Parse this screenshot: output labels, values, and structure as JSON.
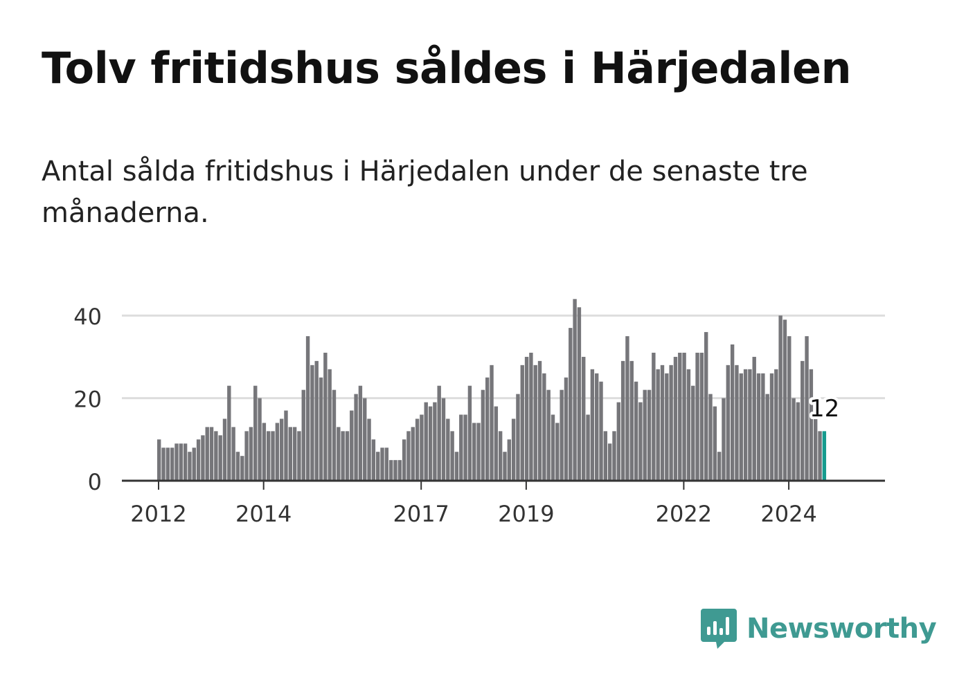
{
  "title": "Tolv fritidshus såldes i Härjedalen",
  "subtitle": "Antal sålda fritidshus i Härjedalen under de senaste tre månaderna.",
  "brand": {
    "name": "Newsworthy",
    "color": "#3f9a92",
    "icon": "newsworthy-logo-icon"
  },
  "colors": {
    "bar": "#76767a",
    "highlight": "#159b8e",
    "grid": "#dddddd",
    "axis": "#333333",
    "text": "#333333"
  },
  "chart_data": {
    "type": "bar",
    "x_start": "2012-01",
    "frequency": "monthly",
    "values": [
      10,
      8,
      8,
      8,
      9,
      9,
      9,
      7,
      8,
      10,
      11,
      13,
      13,
      12,
      11,
      15,
      23,
      13,
      7,
      6,
      12,
      13,
      23,
      20,
      14,
      12,
      12,
      14,
      15,
      17,
      13,
      13,
      12,
      22,
      35,
      28,
      29,
      25,
      31,
      27,
      22,
      13,
      12,
      12,
      17,
      21,
      23,
      20,
      15,
      10,
      7,
      8,
      8,
      5,
      5,
      5,
      10,
      12,
      13,
      15,
      16,
      19,
      18,
      19,
      23,
      20,
      15,
      12,
      7,
      16,
      16,
      23,
      14,
      14,
      22,
      25,
      28,
      18,
      12,
      7,
      10,
      15,
      21,
      28,
      30,
      31,
      28,
      29,
      26,
      22,
      16,
      14,
      22,
      25,
      37,
      44,
      42,
      30,
      16,
      27,
      26,
      24,
      12,
      9,
      12,
      19,
      29,
      35,
      29,
      24,
      19,
      22,
      22,
      31,
      27,
      28,
      26,
      28,
      30,
      31,
      31,
      27,
      23,
      31,
      31,
      36,
      21,
      18,
      7,
      20,
      28,
      33,
      28,
      26,
      27,
      27,
      30,
      26,
      26,
      21,
      26,
      27,
      40,
      39,
      35,
      20,
      19,
      29,
      35,
      27,
      15,
      12,
      12
    ],
    "highlight": {
      "value": 12,
      "label": "12"
    },
    "ylim": [
      0,
      44
    ],
    "yticks": [
      0,
      20,
      40
    ],
    "xticks": [
      "2012",
      "2014",
      "2017",
      "2019",
      "2022",
      "2024"
    ],
    "grid": true,
    "xlabel": "",
    "ylabel": ""
  }
}
